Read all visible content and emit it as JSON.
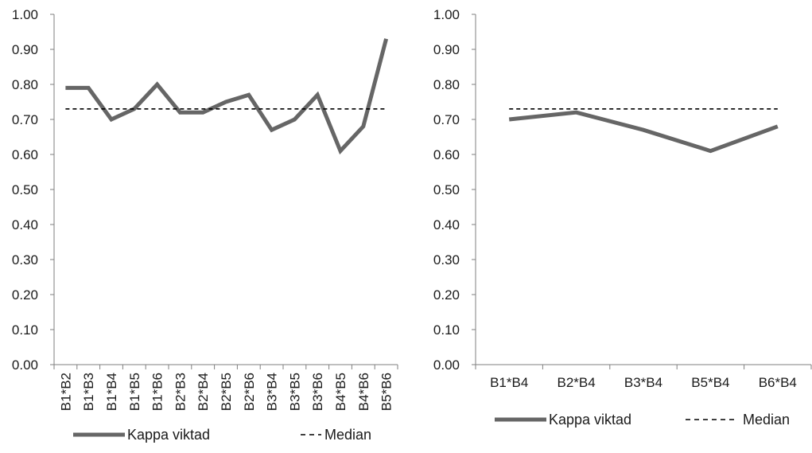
{
  "chart_data": [
    {
      "type": "line",
      "categories": [
        "B1*B2",
        "B1*B3",
        "B1*B4",
        "B1*B5",
        "B1*B6",
        "B2*B3",
        "B2*B4",
        "B2*B5",
        "B2*B6",
        "B3*B4",
        "B3*B5",
        "B3*B6",
        "B4*B5",
        "B4*B6",
        "B5*B6"
      ],
      "series": [
        {
          "name": "Kappa viktad",
          "style": "solid",
          "color": "#666666",
          "values": [
            0.79,
            0.79,
            0.7,
            0.73,
            0.8,
            0.72,
            0.72,
            0.75,
            0.77,
            0.67,
            0.7,
            0.77,
            0.61,
            0.68,
            0.93
          ]
        },
        {
          "name": "Median",
          "style": "dashed",
          "color": "#000000",
          "values": [
            0.73,
            0.73,
            0.73,
            0.73,
            0.73,
            0.73,
            0.73,
            0.73,
            0.73,
            0.73,
            0.73,
            0.73,
            0.73,
            0.73,
            0.73
          ]
        }
      ],
      "ylim": [
        0,
        1
      ],
      "yticks": [
        "0.00",
        "0.10",
        "0.20",
        "0.30",
        "0.40",
        "0.50",
        "0.60",
        "0.70",
        "0.80",
        "0.90",
        "1.00"
      ],
      "legend": "bottom",
      "grid": false
    },
    {
      "type": "line",
      "categories": [
        "B1*B4",
        "B2*B4",
        "B3*B4",
        "B5*B4",
        "B6*B4"
      ],
      "series": [
        {
          "name": "Kappa viktad",
          "style": "solid",
          "color": "#666666",
          "values": [
            0.7,
            0.72,
            0.67,
            0.61,
            0.68
          ]
        },
        {
          "name": "Median",
          "style": "dashed",
          "color": "#000000",
          "values": [
            0.73,
            0.73,
            0.73,
            0.73,
            0.73
          ]
        }
      ],
      "ylim": [
        0,
        1
      ],
      "yticks": [
        "0.00",
        "0.10",
        "0.20",
        "0.30",
        "0.40",
        "0.50",
        "0.60",
        "0.70",
        "0.80",
        "0.90",
        "1.00"
      ],
      "legend": "bottom",
      "grid": false
    }
  ]
}
